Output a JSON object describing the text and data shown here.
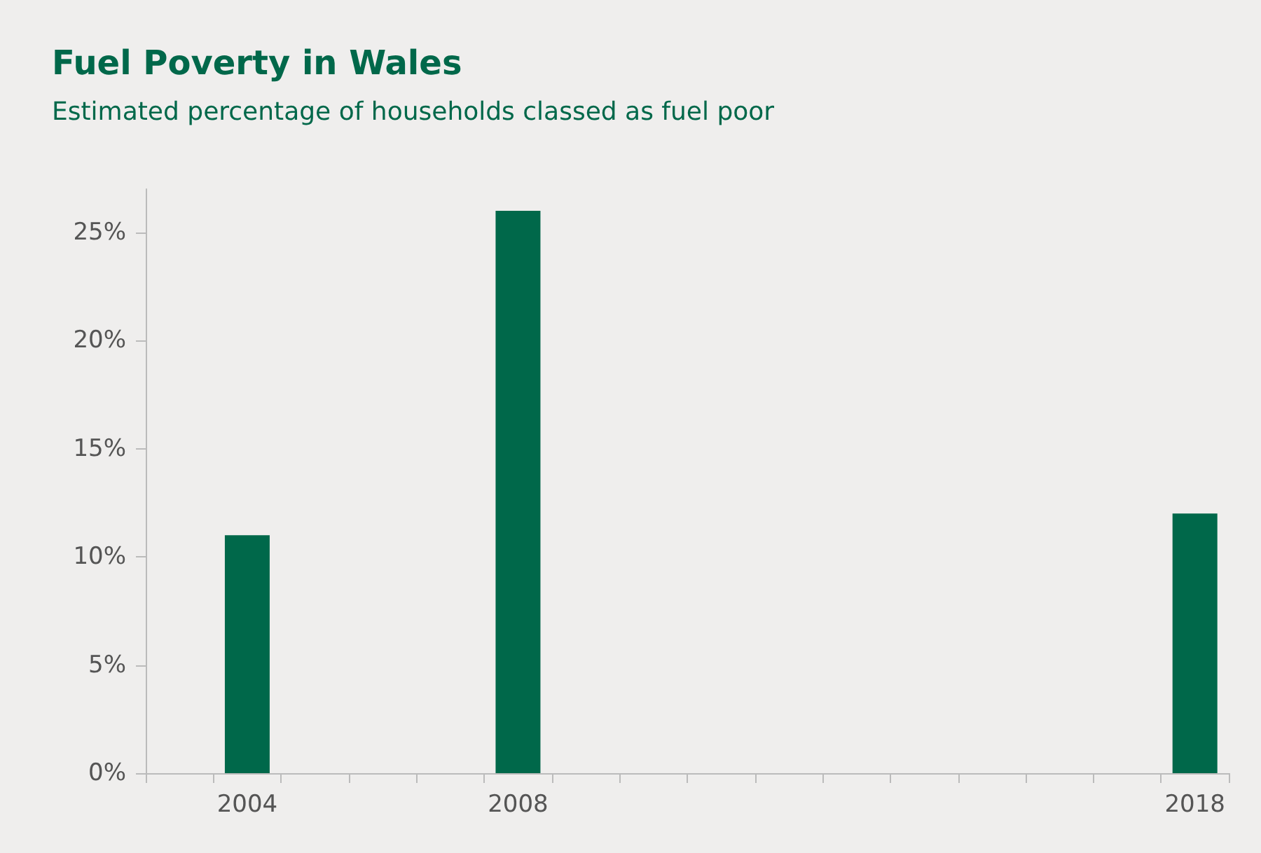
{
  "chart_data": {
    "type": "bar",
    "title": "Fuel Poverty in Wales",
    "subtitle": "Estimated percentage of households classed as fuel poor",
    "categories": [
      null,
      "2004",
      null,
      null,
      null,
      "2008",
      null,
      null,
      null,
      null,
      null,
      null,
      null,
      null,
      null,
      "2018"
    ],
    "values": [
      null,
      11,
      null,
      null,
      null,
      26,
      null,
      null,
      null,
      null,
      null,
      null,
      null,
      null,
      null,
      12
    ],
    "color": "#00684a",
    "ylim": [
      0,
      27
    ],
    "yticks": [
      {
        "value": 0,
        "label": "0%"
      },
      {
        "value": 5,
        "label": "5%"
      },
      {
        "value": 10,
        "label": "10%"
      },
      {
        "value": 15,
        "label": "15%"
      },
      {
        "value": 20,
        "label": "20%"
      },
      {
        "value": 25,
        "label": "25%"
      }
    ],
    "grid": false
  }
}
